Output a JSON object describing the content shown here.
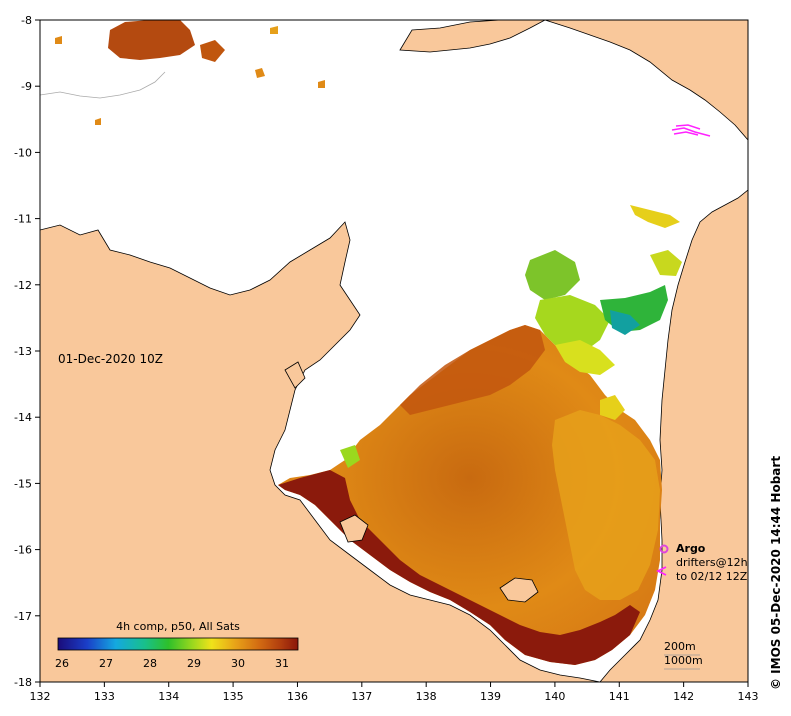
{
  "map": {
    "date_label": "01-Dec-2020 10Z",
    "side_credit": "© IMOS 05-Dec-2020 14:44 Hobart",
    "x_ticks": [
      "132",
      "133",
      "134",
      "135",
      "136",
      "137",
      "138",
      "139",
      "140",
      "141",
      "142",
      "143"
    ],
    "y_ticks": [
      "-8",
      "-9",
      "-10",
      "-11",
      "-12",
      "-13",
      "-14",
      "-15",
      "-16",
      "-17",
      "-18"
    ],
    "colors": {
      "land": "#f9c89b",
      "sst_dark": "#8b1a0c",
      "sst_mid": "#c0560e",
      "sst_orange": "#e08a16",
      "sst_yellow": "#e6b51c",
      "argo": "#dd44dd",
      "drifter": "#ff22ff"
    }
  },
  "legend": {
    "title": "4h comp, p50, All Sats",
    "ticks": [
      "26",
      "27",
      "28",
      "29",
      "30",
      "31"
    ]
  },
  "key": {
    "argo_label": "Argo",
    "drifters_label": "drifters@12h",
    "drifters_sub": "to 02/12 12Z",
    "isobath_200": "200m",
    "isobath_1000": "1000m"
  }
}
